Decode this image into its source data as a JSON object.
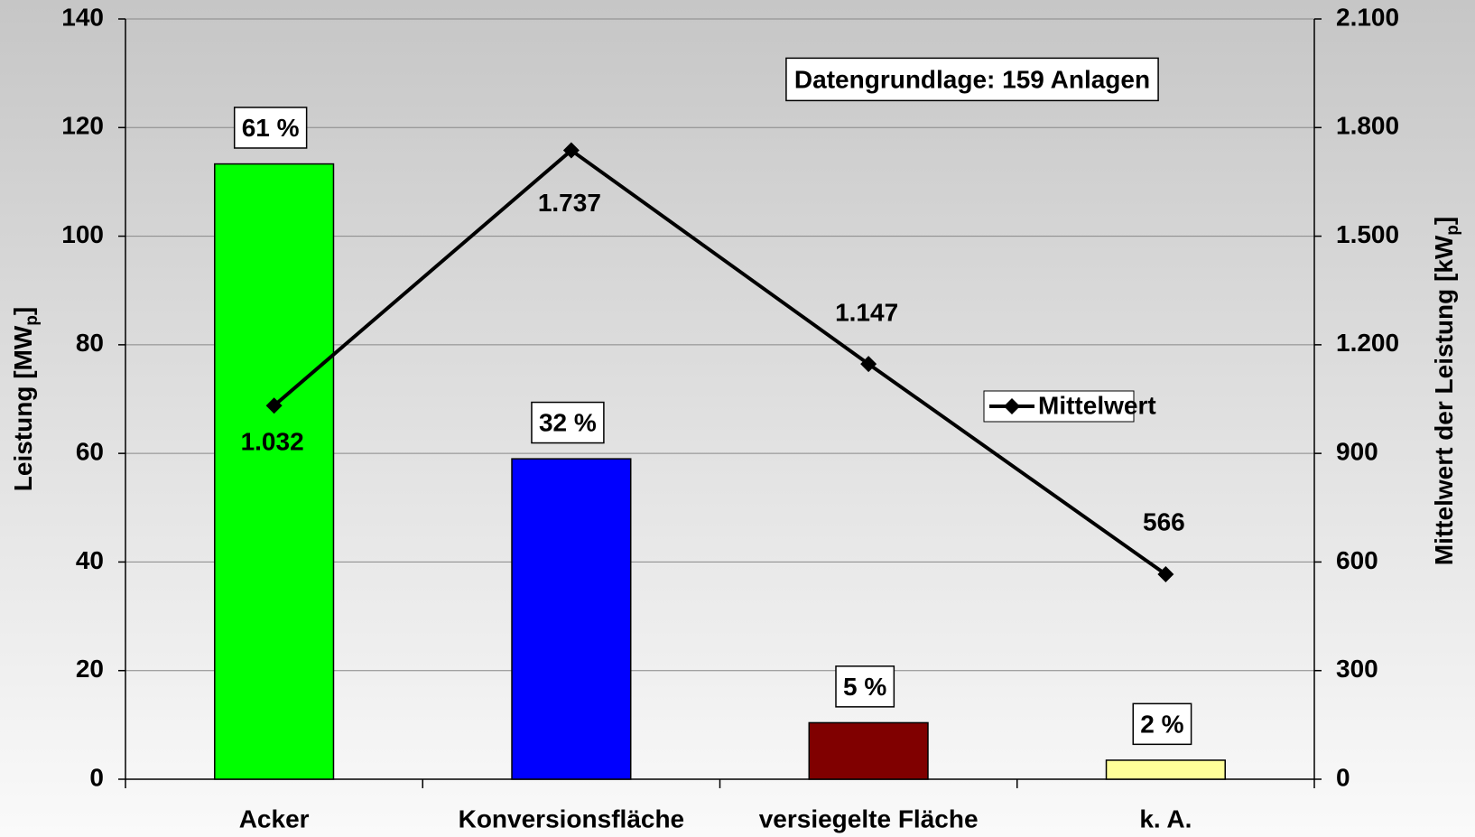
{
  "chart_data": {
    "type": "bar_line",
    "categories": [
      "Acker",
      "Konversionsfläche",
      "versiegelte Fläche",
      "k. A."
    ],
    "ylabel": [
      "Leistung [MW",
      "p",
      "]"
    ],
    "y2label": [
      "Mittelwert der Leistung [kW",
      "p",
      "]"
    ],
    "ylim": [
      0,
      140
    ],
    "yticks": [
      0,
      20,
      40,
      60,
      80,
      100,
      120,
      140
    ],
    "y2lim": [
      0,
      2100
    ],
    "y2ticks": [
      0,
      300,
      600,
      900,
      {
        "value": 1200,
        "label": "1.200"
      },
      {
        "value": 1500,
        "label": "1.500"
      },
      {
        "value": 1800,
        "label": "1.800"
      },
      {
        "value": 2100,
        "label": "2.100"
      }
    ],
    "grid": true,
    "annotation": "Datengrundlage: 159 Anlagen",
    "series": [
      {
        "type": "bar",
        "colors": [
          "#00ff00",
          "#0000ff",
          "#800000",
          "#ffff99"
        ],
        "values": [
          113.3,
          59.0,
          10.4,
          3.5
        ],
        "bar_labels": [
          "61 %",
          "32 %",
          "5 %",
          "2 %"
        ]
      },
      {
        "type": "line",
        "name": "Mittelwert",
        "color": "#000000",
        "axis": "y2",
        "values": [
          1032,
          1737,
          1147,
          566
        ],
        "value_labels": [
          "1.032",
          "1.737",
          "1.147",
          "566"
        ]
      }
    ],
    "legend": "right"
  }
}
